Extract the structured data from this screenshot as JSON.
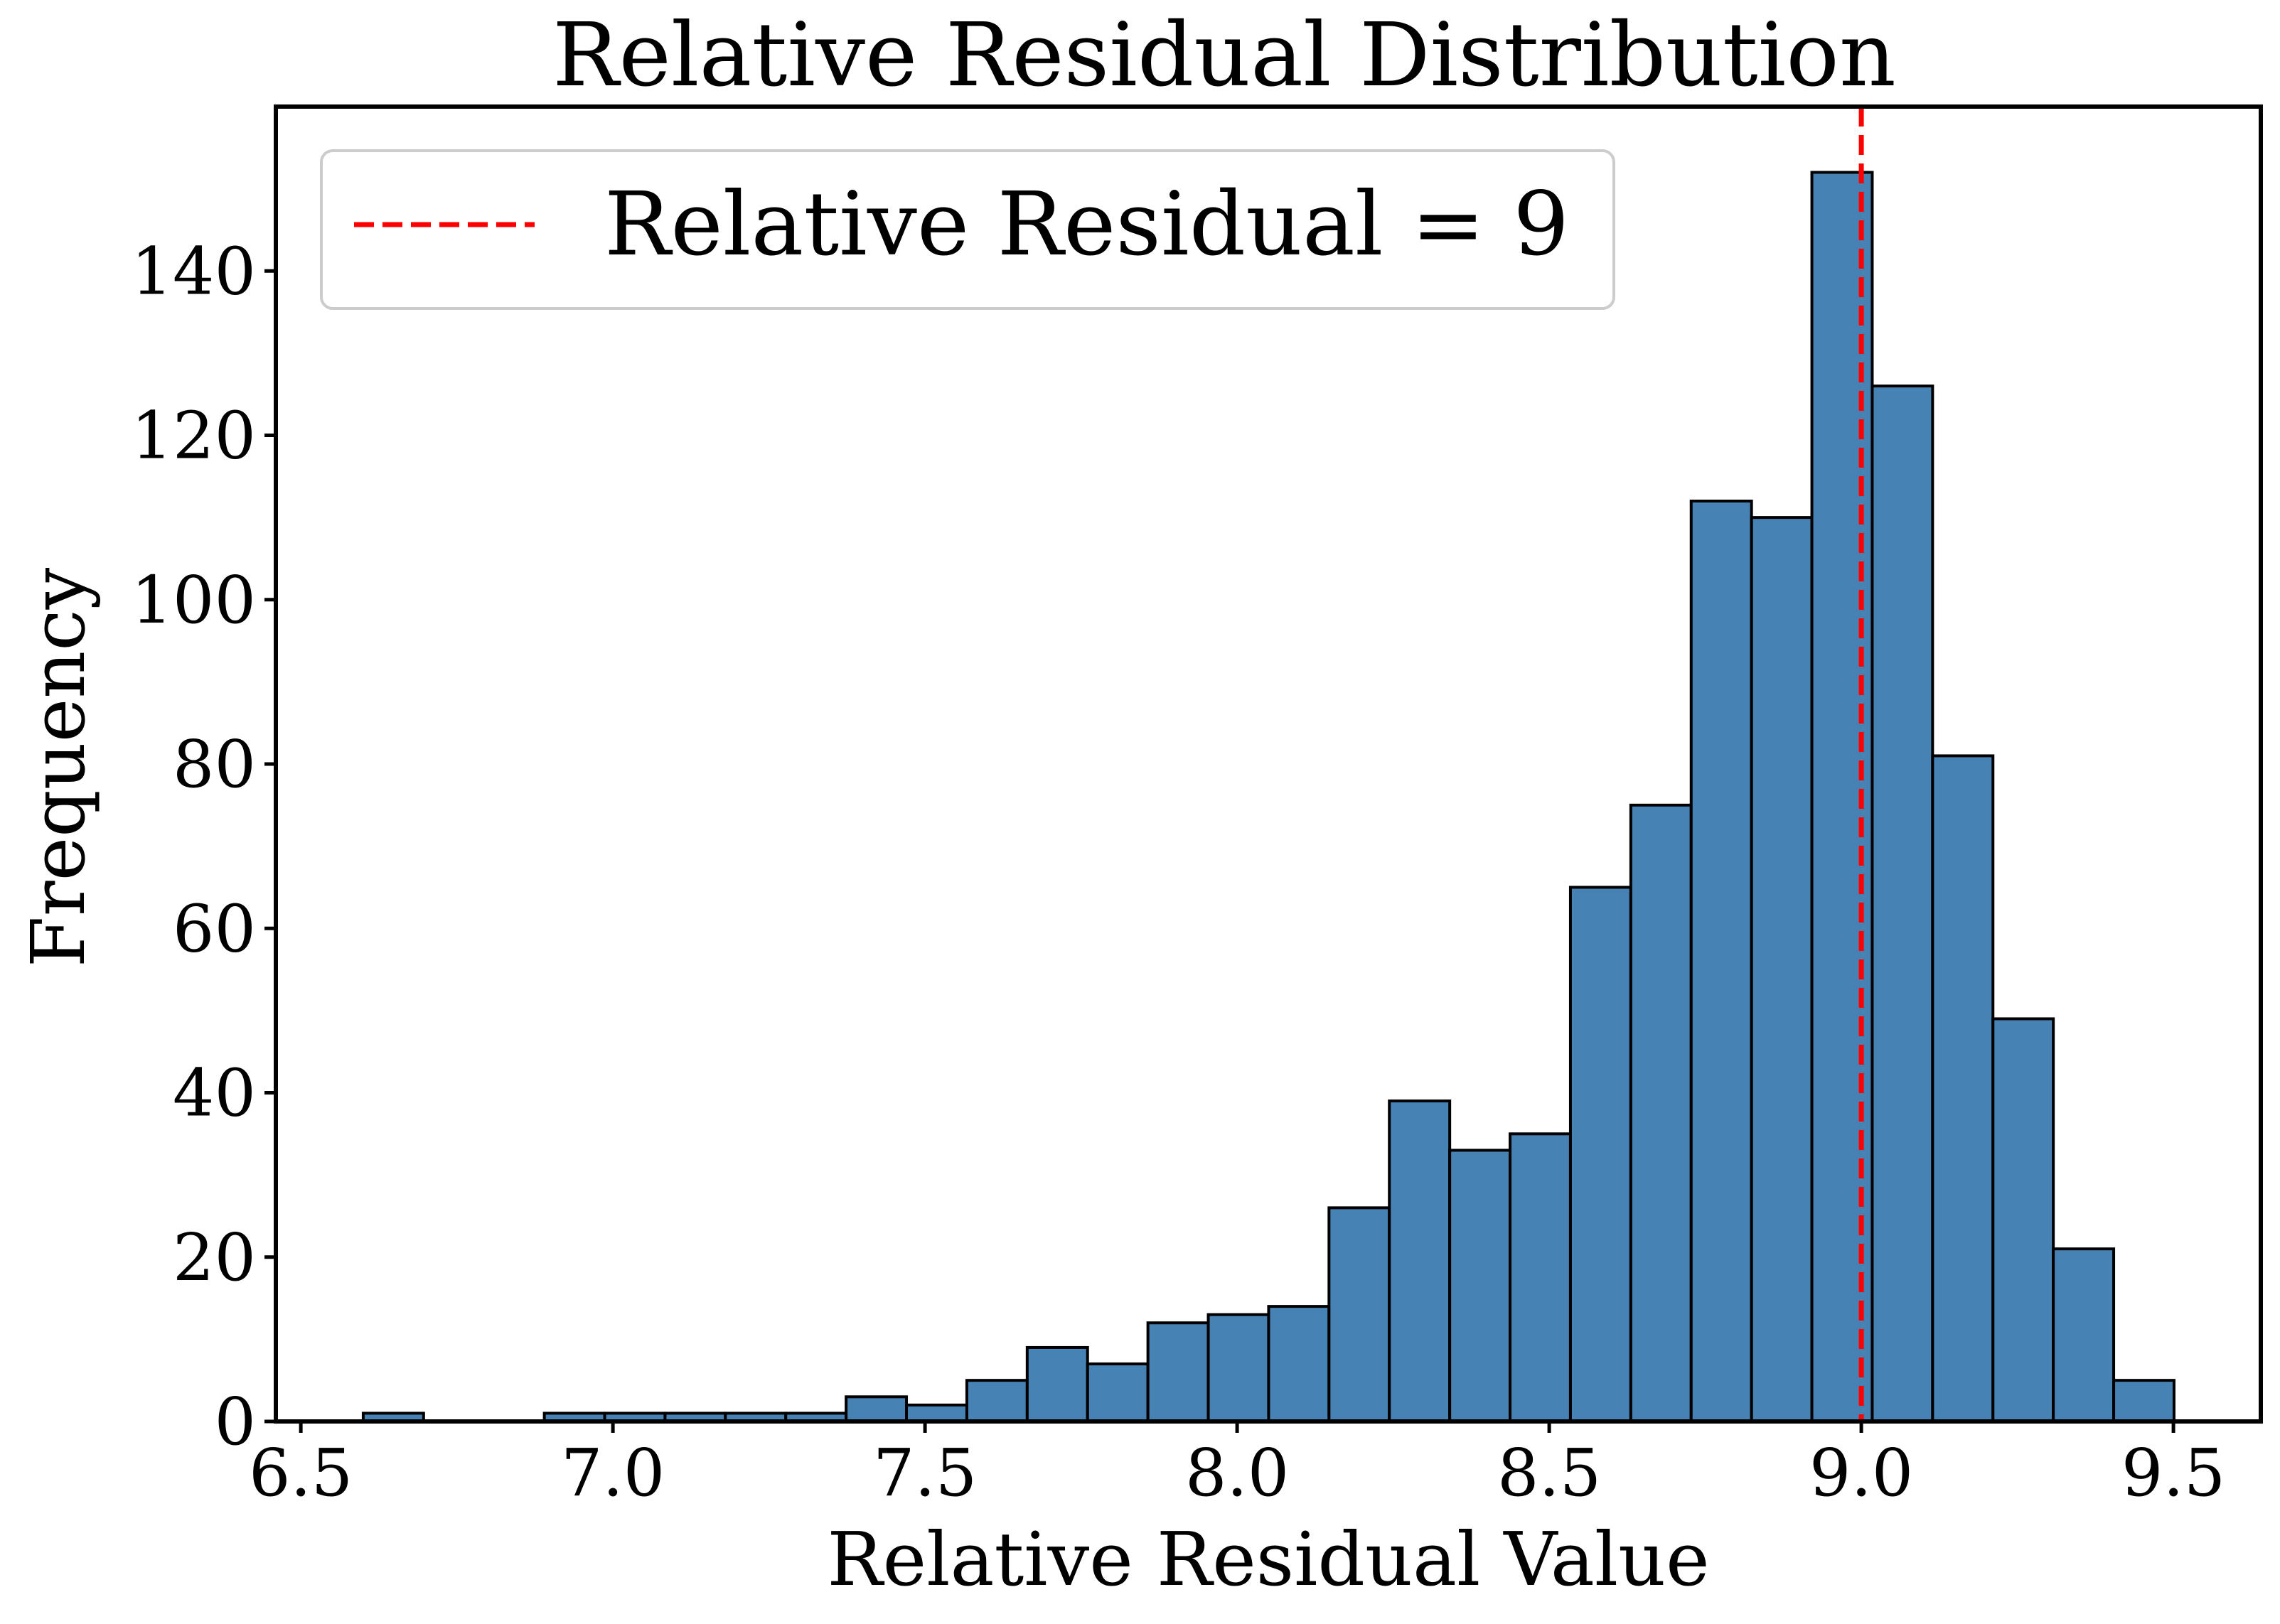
{
  "chart_data": {
    "type": "bar",
    "subtype": "histogram",
    "title": "Relative Residual Distribution",
    "xlabel": "Relative Residual Value",
    "ylabel": "Frequency",
    "xlim": [
      6.46,
      9.64
    ],
    "ylim": [
      0,
      160
    ],
    "xticks": [
      6.5,
      7.0,
      7.5,
      8.0,
      8.5,
      9.0,
      9.5
    ],
    "xtick_labels": [
      "6.5",
      "7.0",
      "7.5",
      "8.0",
      "8.5",
      "9.0",
      "9.5"
    ],
    "yticks": [
      0,
      20,
      40,
      60,
      80,
      100,
      120,
      140
    ],
    "ytick_labels": [
      "0",
      "20",
      "40",
      "60",
      "80",
      "100",
      "120",
      "140"
    ],
    "bins": {
      "start": 6.6,
      "width": 0.0967,
      "counts": [
        1,
        0,
        0,
        1,
        1,
        1,
        1,
        1,
        3,
        2,
        5,
        9,
        7,
        12,
        13,
        14,
        26,
        39,
        33,
        35,
        65,
        75,
        112,
        110,
        152,
        126,
        81,
        49,
        21,
        5
      ]
    },
    "bar_color": "#4682b4",
    "edge_color": "#000000",
    "reference_line": {
      "x": 9.0,
      "color": "#ff0000",
      "style": "dashed"
    },
    "legend": {
      "placement": "top-left",
      "entries": [
        {
          "label": "Relative Residual = 9",
          "color": "#ff0000",
          "style": "dashed"
        }
      ]
    },
    "grid": false
  }
}
